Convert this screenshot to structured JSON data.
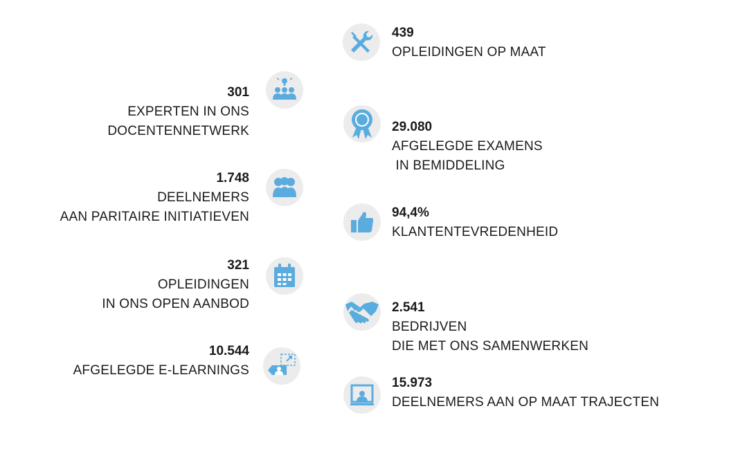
{
  "colors": {
    "icon_blue": "#5aacdf",
    "icon_bg": "#ececec",
    "text": "#1a1a1a"
  },
  "stats": [
    {
      "value": "439",
      "lines": [
        "OPLEIDINGEN OP MAAT"
      ],
      "icon": "tools-icon"
    },
    {
      "value": "301",
      "lines": [
        "EXPERTEN IN ONS",
        "DOCENTENNETWERK"
      ],
      "icon": "experts-lightbulb-icon"
    },
    {
      "value": "29.080",
      "lines": [
        "AFGELEGDE EXAMENS",
        " IN BEMIDDELING"
      ],
      "icon": "award-ribbon-icon"
    },
    {
      "value": "1.748",
      "lines": [
        "DEELNEMERS",
        "AAN PARITAIRE INITIATIEVEN"
      ],
      "icon": "group-icon"
    },
    {
      "value": "94,4%",
      "lines": [
        "KLANTENTEVREDENHEID"
      ],
      "icon": "thumbs-up-icon"
    },
    {
      "value": "321",
      "lines": [
        "OPLEIDINGEN",
        "IN ONS OPEN AANBOD"
      ],
      "icon": "calendar-icon"
    },
    {
      "value": "2.541",
      "lines": [
        "BEDRIJVEN",
        "DIE MET ONS SAMENWERKEN"
      ],
      "icon": "handshake-icon"
    },
    {
      "value": "10.544",
      "lines": [
        "AFGELEGDE E-LEARNINGS"
      ],
      "icon": "e-learning-icon"
    },
    {
      "value": "15.973",
      "lines": [
        "DEELNEMERS AAN OP MAAT TRAJECTEN"
      ],
      "icon": "presentation-screen-icon"
    }
  ]
}
